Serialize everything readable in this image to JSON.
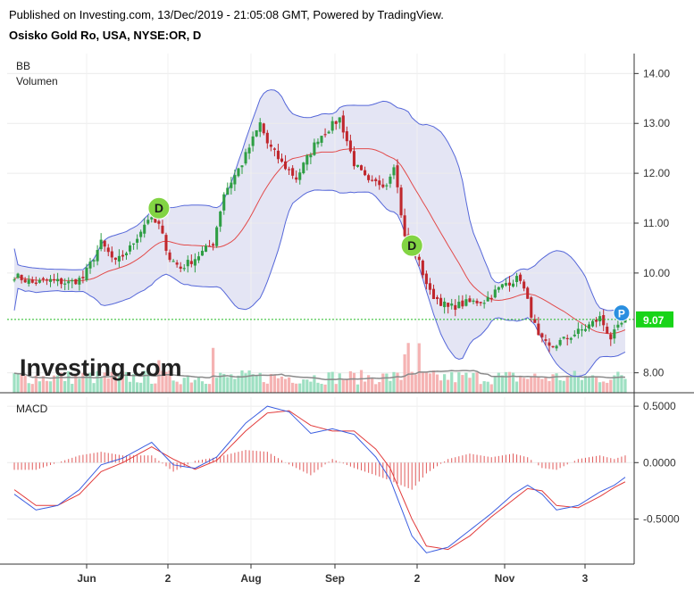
{
  "header": {
    "published": "Published on Investing.com, 13/Dec/2019 - 21:05:08 GMT, Powered by TradingView.",
    "instrument": "Osisko Gold Ro, USA, NYSE:OR, D"
  },
  "watermark": "Investing.com",
  "chart_data": [
    {
      "type": "candlestick",
      "indicators": [
        "BB",
        "Volumen"
      ],
      "y_ticks": [
        "14.00",
        "13.00",
        "12.00",
        "11.00",
        "10.00",
        "8.00"
      ],
      "ylim": [
        7.6,
        14.4
      ],
      "last_price": "9.07",
      "last_price_value": 9.07,
      "x_ticks": [
        "Jun",
        "2",
        "Aug",
        "Sep",
        "2",
        "Nov",
        "3"
      ],
      "colors": {
        "up": "#2e9e44",
        "down": "#c0272d",
        "bands": "#5567d9",
        "basis": "#e24b4b",
        "fill": "#dfe1f2",
        "price_line": "#22bb22"
      },
      "markers": [
        {
          "text": "D",
          "bar": 40,
          "price": 11.3,
          "color": "#82d443"
        },
        {
          "text": "D",
          "bar": 110,
          "price": 10.55,
          "color": "#82d443"
        },
        {
          "text": "P",
          "bar": 168,
          "price": 9.2,
          "color": "#2a8fe0"
        }
      ],
      "candles": "generated from anchor closes below",
      "close_anchors": [
        [
          0,
          9.95
        ],
        [
          5,
          9.8
        ],
        [
          10,
          9.85
        ],
        [
          15,
          9.8
        ],
        [
          19,
          9.9
        ],
        [
          24,
          10.6
        ],
        [
          28,
          10.2
        ],
        [
          32,
          10.5
        ],
        [
          37,
          11.1
        ],
        [
          40,
          10.95
        ],
        [
          43,
          10.3
        ],
        [
          46,
          10.1
        ],
        [
          50,
          10.3
        ],
        [
          55,
          10.6
        ],
        [
          58,
          11.6
        ],
        [
          63,
          12.2
        ],
        [
          68,
          13.0
        ],
        [
          70,
          12.6
        ],
        [
          74,
          12.2
        ],
        [
          78,
          11.9
        ],
        [
          84,
          12.7
        ],
        [
          90,
          13.1
        ],
        [
          94,
          12.2
        ],
        [
          98,
          11.8
        ],
        [
          103,
          11.8
        ],
        [
          105,
          12.2
        ],
        [
          108,
          10.7
        ],
        [
          111,
          10.4
        ],
        [
          115,
          9.6
        ],
        [
          120,
          9.3
        ],
        [
          125,
          9.4
        ],
        [
          130,
          9.45
        ],
        [
          136,
          9.8
        ],
        [
          140,
          9.9
        ],
        [
          145,
          8.7
        ],
        [
          148,
          8.5
        ],
        [
          153,
          8.7
        ],
        [
          158,
          8.9
        ],
        [
          162,
          9.1
        ],
        [
          165,
          8.7
        ],
        [
          169,
          9.07
        ]
      ],
      "volume": "bars shown along bottom of price pane",
      "macd": {
        "label": "MACD",
        "y_ticks": [
          "0.5000",
          "0.0000",
          "-0.5000"
        ],
        "ylim": [
          -0.9,
          0.58
        ],
        "macd_anchors": [
          [
            0,
            -0.28
          ],
          [
            6,
            -0.42
          ],
          [
            12,
            -0.38
          ],
          [
            18,
            -0.24
          ],
          [
            24,
            -0.02
          ],
          [
            30,
            0.04
          ],
          [
            38,
            0.18
          ],
          [
            44,
            -0.02
          ],
          [
            50,
            -0.05
          ],
          [
            56,
            0.05
          ],
          [
            64,
            0.35
          ],
          [
            70,
            0.5
          ],
          [
            76,
            0.45
          ],
          [
            82,
            0.26
          ],
          [
            88,
            0.3
          ],
          [
            94,
            0.25
          ],
          [
            100,
            0.05
          ],
          [
            104,
            -0.15
          ],
          [
            110,
            -0.65
          ],
          [
            114,
            -0.8
          ],
          [
            120,
            -0.75
          ],
          [
            126,
            -0.6
          ],
          [
            132,
            -0.45
          ],
          [
            138,
            -0.28
          ],
          [
            142,
            -0.2
          ],
          [
            146,
            -0.28
          ],
          [
            150,
            -0.42
          ],
          [
            156,
            -0.38
          ],
          [
            162,
            -0.26
          ],
          [
            166,
            -0.2
          ],
          [
            169,
            -0.13
          ]
        ],
        "signal_anchors": [
          [
            0,
            -0.24
          ],
          [
            6,
            -0.38
          ],
          [
            12,
            -0.38
          ],
          [
            18,
            -0.28
          ],
          [
            24,
            -0.08
          ],
          [
            30,
            0.0
          ],
          [
            38,
            0.14
          ],
          [
            44,
            0.03
          ],
          [
            50,
            -0.06
          ],
          [
            56,
            0.02
          ],
          [
            64,
            0.28
          ],
          [
            70,
            0.44
          ],
          [
            76,
            0.46
          ],
          [
            82,
            0.33
          ],
          [
            88,
            0.28
          ],
          [
            94,
            0.28
          ],
          [
            100,
            0.12
          ],
          [
            104,
            -0.05
          ],
          [
            110,
            -0.5
          ],
          [
            114,
            -0.74
          ],
          [
            120,
            -0.77
          ],
          [
            126,
            -0.65
          ],
          [
            132,
            -0.48
          ],
          [
            138,
            -0.33
          ],
          [
            142,
            -0.23
          ],
          [
            146,
            -0.25
          ],
          [
            150,
            -0.38
          ],
          [
            156,
            -0.4
          ],
          [
            162,
            -0.3
          ],
          [
            166,
            -0.22
          ],
          [
            169,
            -0.17
          ]
        ],
        "colors": {
          "macd": "#3b5ee0",
          "signal": "#e23b3b",
          "hist": "#e05a5a"
        }
      }
    }
  ]
}
